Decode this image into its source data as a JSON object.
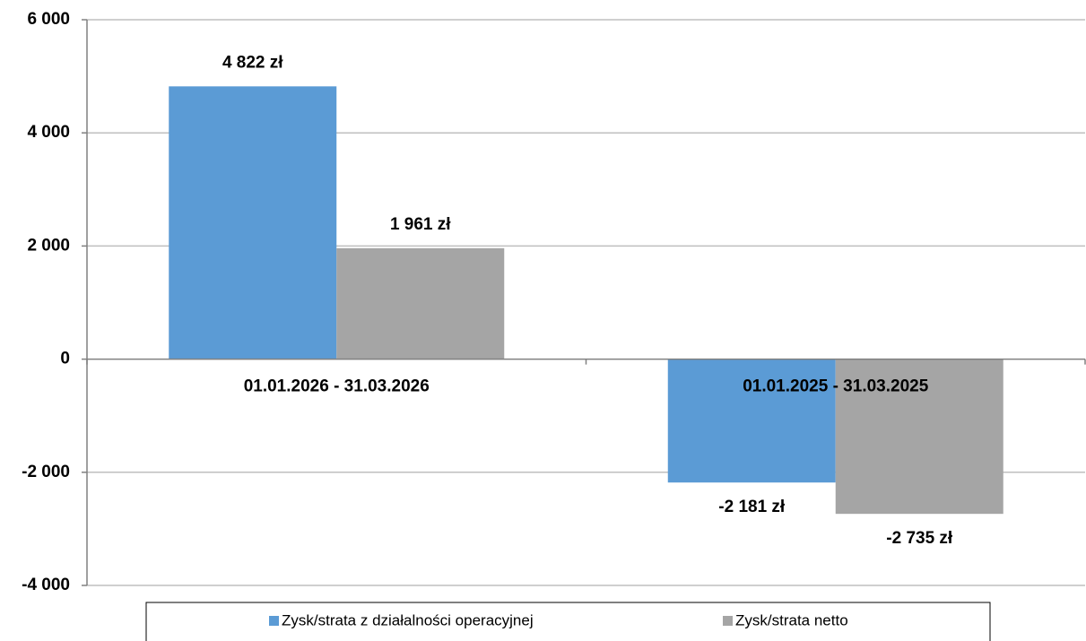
{
  "chart_data": {
    "type": "bar",
    "categories": [
      "01.01.2026 - 31.03.2026",
      "01.01.2025 - 31.03.2025"
    ],
    "series": [
      {
        "name": "Zysk/strata z działalności operacyjnej",
        "color": "#5b9bd5",
        "values": [
          4822,
          -2181
        ],
        "value_labels": [
          "4 822 zł",
          "-2 181 zł"
        ]
      },
      {
        "name": "Zysk/strata netto",
        "color": "#a5a5a5",
        "values": [
          1961,
          -2735
        ],
        "value_labels": [
          "1 961 zł",
          "-2 735 zł"
        ]
      }
    ],
    "ylim": [
      -4000,
      6000
    ],
    "yticks": [
      {
        "value": -4000,
        "label": "-4 000"
      },
      {
        "value": -2000,
        "label": "-2 000"
      },
      0,
      {
        "value": 2000,
        "label": "2 000"
      },
      {
        "value": 4000,
        "label": "4 000"
      },
      {
        "value": 6000,
        "label": "6 000"
      }
    ],
    "grid": true,
    "legend": "bottom"
  }
}
